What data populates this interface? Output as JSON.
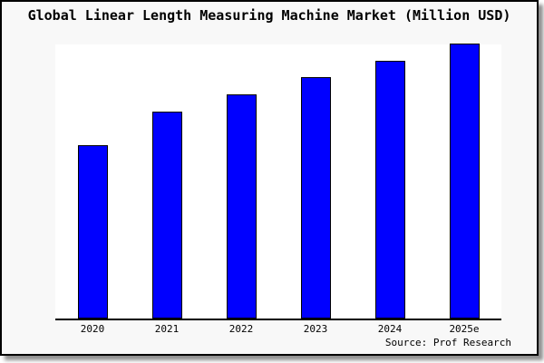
{
  "title": "Global Linear Length Measuring Machine Market (Million USD)",
  "source_note": "Source: Prof Research",
  "colors": {
    "bar_fill": "#0000ff",
    "bar_border": "#000000",
    "figure_background": "#f8f8f8",
    "plot_background": "#ffffff",
    "axis_line": "#000000",
    "border": "#000000",
    "shadow": "#8f8f8f",
    "text": "#000000"
  },
  "chart_data": {
    "type": "bar",
    "title": "Global Linear Length Measuring Machine Market (Million USD)",
    "categories": [
      "2020",
      "2021",
      "2022",
      "2023",
      "2024",
      "2025e"
    ],
    "values": [
      62.8,
      75.1,
      81.4,
      87.7,
      93.7,
      100
    ],
    "value_note": "No y-axis labels, ticks or gridlines are shown; values are relative heights estimated from the bars with 2025e indexed to 100",
    "xlabel": "",
    "ylabel": "",
    "ylim": [
      0,
      100.3
    ],
    "grid": false,
    "legend": false,
    "bar_color": "#0000ff",
    "annotation": "Source: Prof Research"
  }
}
